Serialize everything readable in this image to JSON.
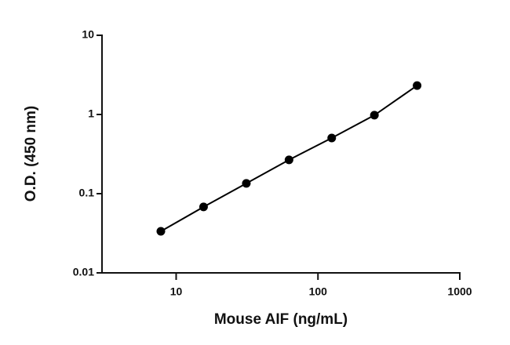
{
  "chart_data": {
    "type": "scatter",
    "title": null,
    "x_label": "Mouse AIF (ng/mL)",
    "y_label": "O.D. (450 nm)",
    "series": [
      {
        "name": null,
        "color": "#000000",
        "x": [
          7.8,
          15.6,
          31.25,
          62.5,
          125,
          250,
          500
        ],
        "values": [
          0.0335,
          0.068,
          0.135,
          0.267,
          0.505,
          0.98,
          2.32
        ]
      }
    ],
    "xlim": [
      3,
      1000
    ],
    "ylim": [
      0.01,
      10
    ],
    "xticks": [
      10,
      100,
      1000
    ],
    "yticks": [
      0.01,
      0.1,
      1,
      10
    ],
    "xscale": "log",
    "yscale": "log",
    "grid": false,
    "fit_line": true
  }
}
